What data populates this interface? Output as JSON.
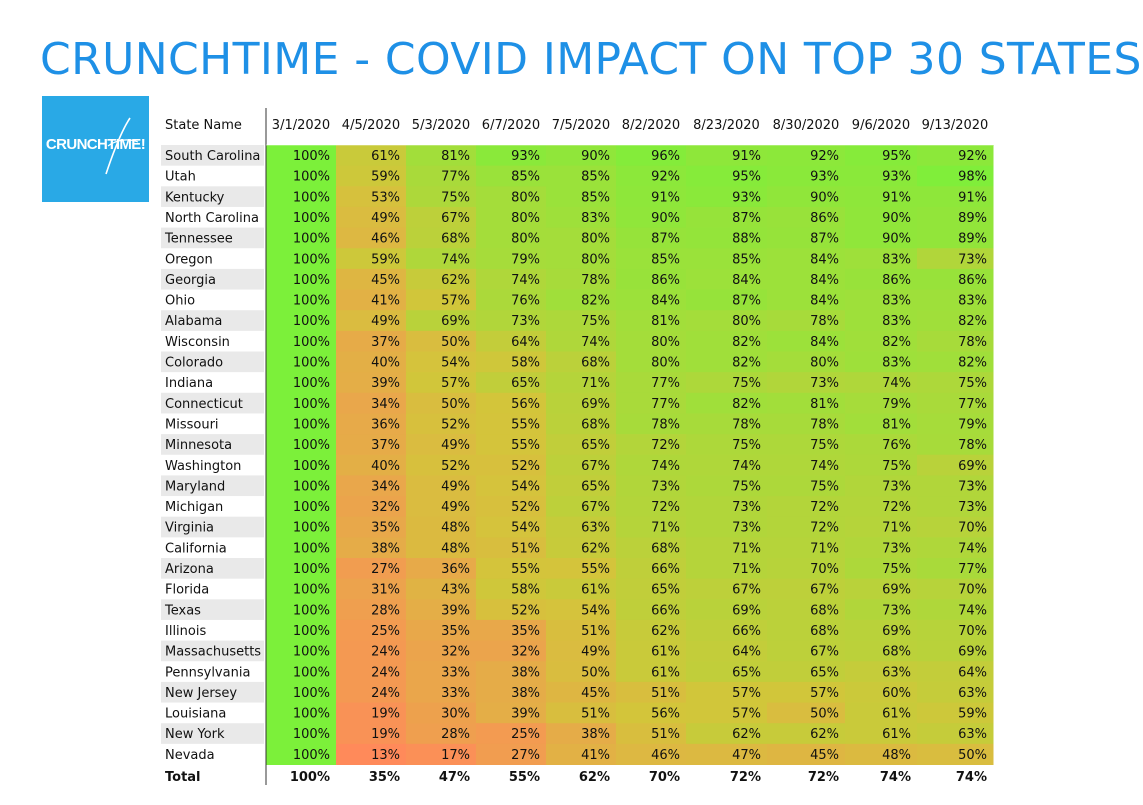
{
  "title": "CRUNCHTIME - COVID IMPACT ON TOP 30 STATES",
  "logo": {
    "text": "CRUNCHTIME!"
  },
  "chart_data": {
    "type": "heatmap",
    "row_header": "State Name",
    "columns": [
      "3/1/2020",
      "4/5/2020",
      "5/3/2020",
      "6/7/2020",
      "7/5/2020",
      "8/2/2020",
      "8/23/2020",
      "8/30/2020",
      "9/6/2020",
      "9/13/2020"
    ],
    "rows": [
      {
        "name": "South Carolina",
        "values": [
          100,
          61,
          81,
          93,
          90,
          96,
          91,
          92,
          95,
          92
        ]
      },
      {
        "name": "Utah",
        "values": [
          100,
          59,
          77,
          85,
          85,
          92,
          95,
          93,
          93,
          98
        ]
      },
      {
        "name": "Kentucky",
        "values": [
          100,
          53,
          75,
          80,
          85,
          91,
          93,
          90,
          91,
          91
        ]
      },
      {
        "name": "North Carolina",
        "values": [
          100,
          49,
          67,
          80,
          83,
          90,
          87,
          86,
          90,
          89
        ]
      },
      {
        "name": "Tennessee",
        "values": [
          100,
          46,
          68,
          80,
          80,
          87,
          88,
          87,
          90,
          89
        ]
      },
      {
        "name": "Oregon",
        "values": [
          100,
          59,
          74,
          79,
          80,
          85,
          85,
          84,
          83,
          73
        ]
      },
      {
        "name": "Georgia",
        "values": [
          100,
          45,
          62,
          74,
          78,
          86,
          84,
          84,
          86,
          86
        ]
      },
      {
        "name": "Ohio",
        "values": [
          100,
          41,
          57,
          76,
          82,
          84,
          87,
          84,
          83,
          83
        ]
      },
      {
        "name": "Alabama",
        "values": [
          100,
          49,
          69,
          73,
          75,
          81,
          80,
          78,
          83,
          82
        ]
      },
      {
        "name": "Wisconsin",
        "values": [
          100,
          37,
          50,
          64,
          74,
          80,
          82,
          84,
          82,
          78
        ]
      },
      {
        "name": "Colorado",
        "values": [
          100,
          40,
          54,
          58,
          68,
          80,
          82,
          80,
          83,
          82
        ]
      },
      {
        "name": "Indiana",
        "values": [
          100,
          39,
          57,
          65,
          71,
          77,
          75,
          73,
          74,
          75
        ]
      },
      {
        "name": "Connecticut",
        "values": [
          100,
          34,
          50,
          56,
          69,
          77,
          82,
          81,
          79,
          77
        ]
      },
      {
        "name": "Missouri",
        "values": [
          100,
          36,
          52,
          55,
          68,
          78,
          78,
          78,
          81,
          79
        ]
      },
      {
        "name": "Minnesota",
        "values": [
          100,
          37,
          49,
          55,
          65,
          72,
          75,
          75,
          76,
          78
        ]
      },
      {
        "name": "Washington",
        "values": [
          100,
          40,
          52,
          52,
          67,
          74,
          74,
          74,
          75,
          69
        ]
      },
      {
        "name": "Maryland",
        "values": [
          100,
          34,
          49,
          54,
          65,
          73,
          75,
          75,
          73,
          73
        ]
      },
      {
        "name": "Michigan",
        "values": [
          100,
          32,
          49,
          52,
          67,
          72,
          73,
          72,
          72,
          73
        ]
      },
      {
        "name": "Virginia",
        "values": [
          100,
          35,
          48,
          54,
          63,
          71,
          73,
          72,
          71,
          70
        ]
      },
      {
        "name": "California",
        "values": [
          100,
          38,
          48,
          51,
          62,
          68,
          71,
          71,
          73,
          74
        ]
      },
      {
        "name": "Arizona",
        "values": [
          100,
          27,
          36,
          55,
          55,
          66,
          71,
          70,
          75,
          77
        ]
      },
      {
        "name": "Florida",
        "values": [
          100,
          31,
          43,
          58,
          61,
          65,
          67,
          67,
          69,
          70
        ]
      },
      {
        "name": "Texas",
        "values": [
          100,
          28,
          39,
          52,
          54,
          66,
          69,
          68,
          73,
          74
        ]
      },
      {
        "name": "Illinois",
        "values": [
          100,
          25,
          35,
          35,
          51,
          62,
          66,
          68,
          69,
          70
        ]
      },
      {
        "name": "Massachusetts",
        "values": [
          100,
          24,
          32,
          32,
          49,
          61,
          64,
          67,
          68,
          69
        ]
      },
      {
        "name": "Pennsylvania",
        "values": [
          100,
          24,
          33,
          38,
          50,
          61,
          65,
          65,
          63,
          64
        ]
      },
      {
        "name": "New Jersey",
        "values": [
          100,
          24,
          33,
          38,
          45,
          51,
          57,
          57,
          60,
          63
        ]
      },
      {
        "name": "Louisiana",
        "values": [
          100,
          19,
          30,
          39,
          51,
          56,
          57,
          50,
          61,
          59
        ]
      },
      {
        "name": "New York",
        "values": [
          100,
          19,
          28,
          25,
          38,
          51,
          62,
          62,
          61,
          63
        ]
      },
      {
        "name": "Nevada",
        "values": [
          100,
          13,
          17,
          27,
          41,
          46,
          47,
          45,
          48,
          50
        ]
      }
    ],
    "total": {
      "name": "Total",
      "values": [
        100,
        35,
        47,
        55,
        62,
        70,
        72,
        72,
        74,
        74
      ]
    },
    "value_suffix": "%",
    "colors": {
      "low": "#ff8a5a",
      "mid": "#d2c63a",
      "high": "#7cf03a"
    }
  }
}
